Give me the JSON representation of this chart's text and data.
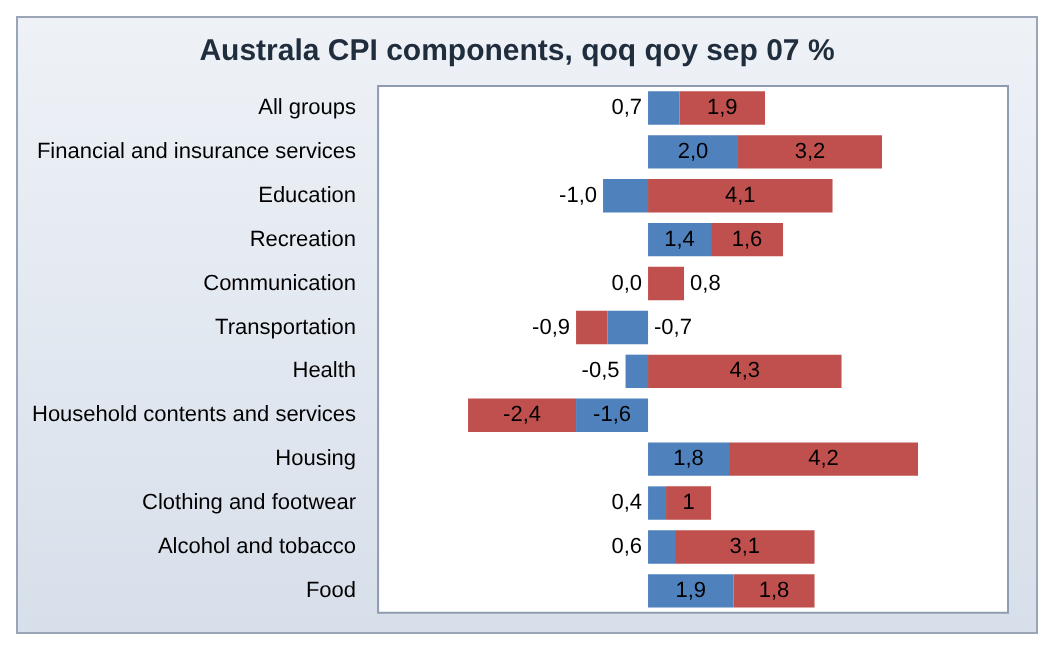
{
  "chart_data": {
    "type": "bar",
    "orientation": "horizontal",
    "stacked": true,
    "title": "Australa CPI components, qoq qoy sep 07 %",
    "categories": [
      "All groups",
      "Financial and insurance services",
      "Education",
      "Recreation",
      "Communication",
      "Transportation",
      "Health",
      "Household contents and services",
      "Housing",
      "Clothing and footwear",
      "Alcohol and tobacco",
      "Food"
    ],
    "series": [
      {
        "color": "#4f81bd",
        "values": [
          0.7,
          2.0,
          -1.0,
          1.4,
          0.0,
          -0.9,
          -0.5,
          -1.6,
          1.8,
          0.4,
          0.6,
          1.9
        ],
        "value_labels": [
          "0,7",
          "2,0",
          "-1,0",
          "1,4",
          "0,0",
          "-0,9",
          "-0,5",
          "-1,6",
          "1,8",
          "0,4",
          "0,6",
          "1,9"
        ]
      },
      {
        "color": "#c0504d",
        "values": [
          1.9,
          3.2,
          4.1,
          1.6,
          0.8,
          -0.7,
          4.3,
          -2.4,
          4.2,
          1.0,
          3.1,
          1.8
        ],
        "value_labels": [
          "1,9",
          "3,2",
          "4,1",
          "1,6",
          "0,8",
          "-0,7",
          "4,3",
          "-2,4",
          "4,2",
          "1",
          "3,1",
          "1,8"
        ]
      }
    ],
    "legend": false,
    "grid": false
  }
}
